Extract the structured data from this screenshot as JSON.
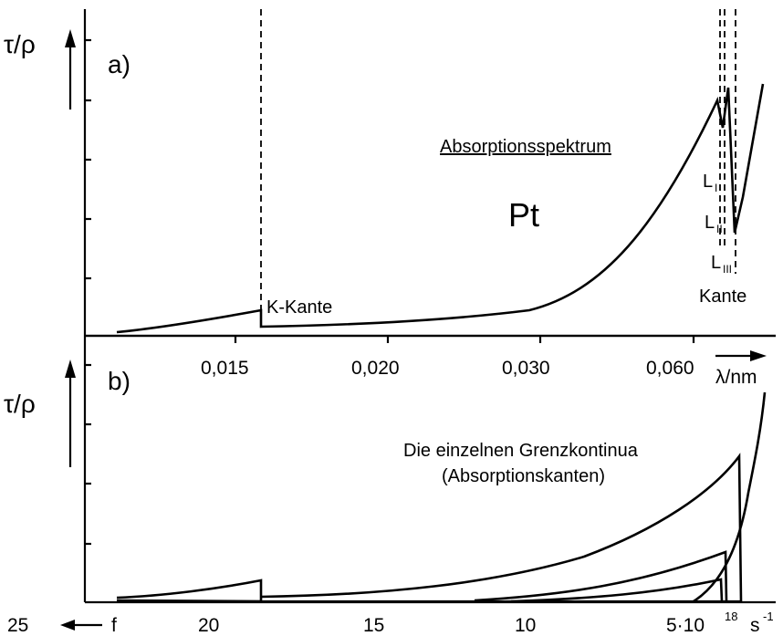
{
  "chart_data": [
    {
      "panel": "a)",
      "type": "line",
      "ylabel": "τ/ρ",
      "xlabel": "λ/nm",
      "x_ticks": [
        "0,015",
        "0,020",
        "0,030",
        "0,060"
      ],
      "title": "Absorptionsspektrum",
      "element": "Pt",
      "edge_labels": [
        "K-Kante",
        "L",
        "I",
        "L",
        "II",
        "L",
        "III",
        "Kante"
      ],
      "series": [
        {
          "values": "absorption curve with K edge near 0,016 nm and L edges (LI, LII, LIII) near the right end"
        }
      ]
    },
    {
      "panel": "b)",
      "type": "line",
      "ylabel": "τ/ρ",
      "xlabel": "f",
      "x_ticks": [
        "25",
        "20",
        "15",
        "10",
        "5·10",
        "18",
        "s",
        "-1"
      ],
      "title": "Die einzelnen Grenzkontinua",
      "subtitle": "(Absorptionskanten)",
      "series": [
        {
          "values": "individual edge continua (K, LI, LII, LIII) rising toward the right"
        }
      ]
    }
  ]
}
